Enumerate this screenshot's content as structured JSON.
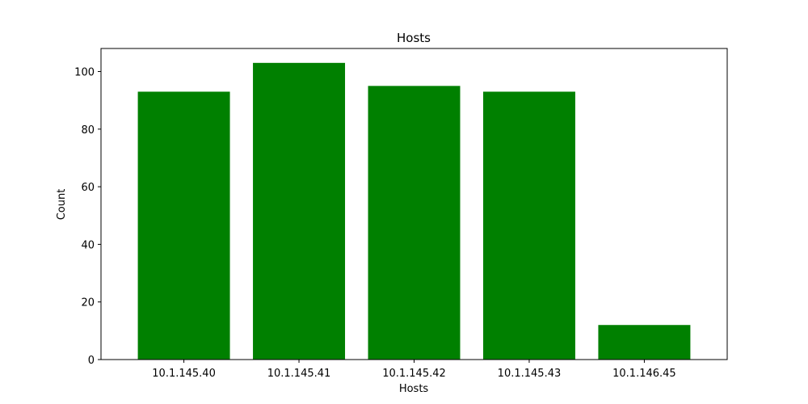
{
  "chart_data": {
    "type": "bar",
    "title": "Hosts",
    "xlabel": "Hosts",
    "ylabel": "Count",
    "categories": [
      "10.1.145.40",
      "10.1.145.41",
      "10.1.145.42",
      "10.1.145.43",
      "10.1.146.45"
    ],
    "values": [
      93,
      103,
      95,
      93,
      12
    ],
    "ylim": [
      0,
      108
    ],
    "yticks": [
      0,
      20,
      40,
      60,
      80,
      100
    ],
    "bar_color": "#008000",
    "grid": false,
    "legend": "none"
  }
}
